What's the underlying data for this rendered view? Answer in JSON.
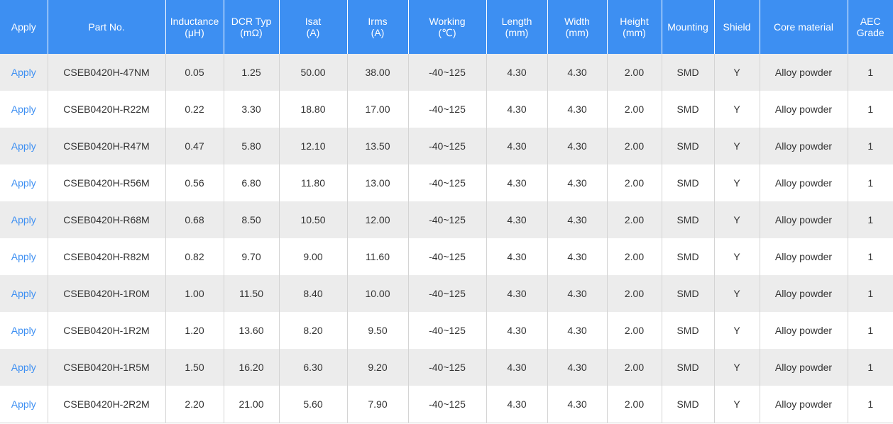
{
  "header": {
    "apply": "Apply",
    "part_no": "Part No.",
    "inductance": {
      "label": "Inductance",
      "unit": "(μH)"
    },
    "dcr": {
      "label": "DCR Typ",
      "unit": "(mΩ)"
    },
    "isat": {
      "label": "Isat",
      "unit": "(A)"
    },
    "irms": {
      "label": "Irms",
      "unit": "(A)"
    },
    "working": {
      "label": "Working",
      "unit": "(℃)"
    },
    "length": {
      "label": "Length",
      "unit": "(mm)"
    },
    "width": {
      "label": "Width",
      "unit": "(mm)"
    },
    "height": {
      "label": "Height",
      "unit": "(mm)"
    },
    "mounting": "Mounting",
    "shield": "Shield",
    "core": "Core material",
    "aec": {
      "label": "AEC",
      "unit": "Grade"
    }
  },
  "accent_color": "#3d8ff2",
  "rows": [
    {
      "apply": "Apply",
      "part": "CSEB0420H-47NM",
      "inductance": "0.05",
      "dcr": "1.25",
      "isat": "50.00",
      "irms": "38.00",
      "working": "-40~125",
      "length": "4.30",
      "width": "4.30",
      "height": "2.00",
      "mounting": "SMD",
      "shield": "Y",
      "core": "Alloy powder",
      "aec": "1"
    },
    {
      "apply": "Apply",
      "part": "CSEB0420H-R22M",
      "inductance": "0.22",
      "dcr": "3.30",
      "isat": "18.80",
      "irms": "17.00",
      "working": "-40~125",
      "length": "4.30",
      "width": "4.30",
      "height": "2.00",
      "mounting": "SMD",
      "shield": "Y",
      "core": "Alloy powder",
      "aec": "1"
    },
    {
      "apply": "Apply",
      "part": "CSEB0420H-R47M",
      "inductance": "0.47",
      "dcr": "5.80",
      "isat": "12.10",
      "irms": "13.50",
      "working": "-40~125",
      "length": "4.30",
      "width": "4.30",
      "height": "2.00",
      "mounting": "SMD",
      "shield": "Y",
      "core": "Alloy powder",
      "aec": "1"
    },
    {
      "apply": "Apply",
      "part": "CSEB0420H-R56M",
      "inductance": "0.56",
      "dcr": "6.80",
      "isat": "11.80",
      "irms": "13.00",
      "working": "-40~125",
      "length": "4.30",
      "width": "4.30",
      "height": "2.00",
      "mounting": "SMD",
      "shield": "Y",
      "core": "Alloy powder",
      "aec": "1"
    },
    {
      "apply": "Apply",
      "part": "CSEB0420H-R68M",
      "inductance": "0.68",
      "dcr": "8.50",
      "isat": "10.50",
      "irms": "12.00",
      "working": "-40~125",
      "length": "4.30",
      "width": "4.30",
      "height": "2.00",
      "mounting": "SMD",
      "shield": "Y",
      "core": "Alloy powder",
      "aec": "1"
    },
    {
      "apply": "Apply",
      "part": "CSEB0420H-R82M",
      "inductance": "0.82",
      "dcr": "9.70",
      "isat": "9.00",
      "irms": "11.60",
      "working": "-40~125",
      "length": "4.30",
      "width": "4.30",
      "height": "2.00",
      "mounting": "SMD",
      "shield": "Y",
      "core": "Alloy powder",
      "aec": "1"
    },
    {
      "apply": "Apply",
      "part": "CSEB0420H-1R0M",
      "inductance": "1.00",
      "dcr": "11.50",
      "isat": "8.40",
      "irms": "10.00",
      "working": "-40~125",
      "length": "4.30",
      "width": "4.30",
      "height": "2.00",
      "mounting": "SMD",
      "shield": "Y",
      "core": "Alloy powder",
      "aec": "1"
    },
    {
      "apply": "Apply",
      "part": "CSEB0420H-1R2M",
      "inductance": "1.20",
      "dcr": "13.60",
      "isat": "8.20",
      "irms": "9.50",
      "working": "-40~125",
      "length": "4.30",
      "width": "4.30",
      "height": "2.00",
      "mounting": "SMD",
      "shield": "Y",
      "core": "Alloy powder",
      "aec": "1"
    },
    {
      "apply": "Apply",
      "part": "CSEB0420H-1R5M",
      "inductance": "1.50",
      "dcr": "16.20",
      "isat": "6.30",
      "irms": "9.20",
      "working": "-40~125",
      "length": "4.30",
      "width": "4.30",
      "height": "2.00",
      "mounting": "SMD",
      "shield": "Y",
      "core": "Alloy powder",
      "aec": "1"
    },
    {
      "apply": "Apply",
      "part": "CSEB0420H-2R2M",
      "inductance": "2.20",
      "dcr": "21.00",
      "isat": "5.60",
      "irms": "7.90",
      "working": "-40~125",
      "length": "4.30",
      "width": "4.30",
      "height": "2.00",
      "mounting": "SMD",
      "shield": "Y",
      "core": "Alloy powder",
      "aec": "1"
    }
  ]
}
